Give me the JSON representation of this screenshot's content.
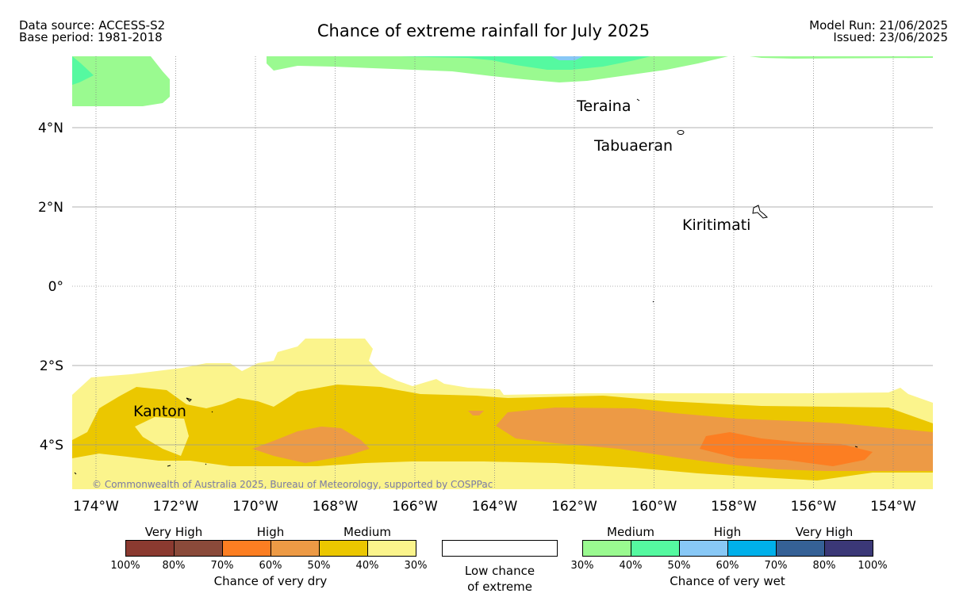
{
  "header": {
    "data_source": "Data source: ACCESS-S2",
    "base_period": "Base period: 1981-2018",
    "title": "Chance of extreme rainfall for July 2025",
    "model_run": "Model Run: 21/06/2025",
    "issued": "Issued: 23/06/2025"
  },
  "map": {
    "lat_labels": [
      "4°N",
      "2°N",
      "0°",
      "2°S",
      "4°S"
    ],
    "lon_labels": [
      "174°W",
      "172°W",
      "170°W",
      "168°W",
      "166°W",
      "164°W",
      "162°W",
      "160°W",
      "158°W",
      "156°W",
      "154°W"
    ],
    "places": [
      "Teraina",
      "Tabuaeran",
      "Kiritimati",
      "Kanton"
    ],
    "copyright": "© Commonwealth of Australia 2025, Bureau of Meteorology, supported by COSPPac",
    "colors": {
      "dry_30_40": "#fbf48c",
      "dry_40_50": "#ebc700",
      "dry_50_60": "#ed9a45",
      "dry_60_70": "#fc7e22",
      "wet_30_40": "#9afa90",
      "wet_40_50": "#55f9a0",
      "wet_50_60": "#88c8f6"
    }
  },
  "legend": {
    "dry": {
      "categories": [
        "Very High",
        "High",
        "Medium"
      ],
      "ticks": [
        "100%",
        "80%",
        "70%",
        "60%",
        "50%",
        "40%",
        "30%"
      ],
      "colors": [
        "#8b3a30",
        "#8a4a3a",
        "#fc7e22",
        "#ed9a45",
        "#ebc700",
        "#fbf48c"
      ],
      "caption": "Chance of very dry"
    },
    "low": {
      "caption_line1": "Low chance",
      "caption_line2": "of extreme",
      "color": "#ffffff"
    },
    "wet": {
      "categories": [
        "Medium",
        "High",
        "Very High"
      ],
      "ticks": [
        "30%",
        "40%",
        "50%",
        "60%",
        "70%",
        "80%",
        "100%"
      ],
      "colors": [
        "#9afa90",
        "#55f9a0",
        "#88c8f6",
        "#00b0ea",
        "#356196",
        "#3b3877"
      ],
      "caption": "Chance of very wet"
    }
  }
}
